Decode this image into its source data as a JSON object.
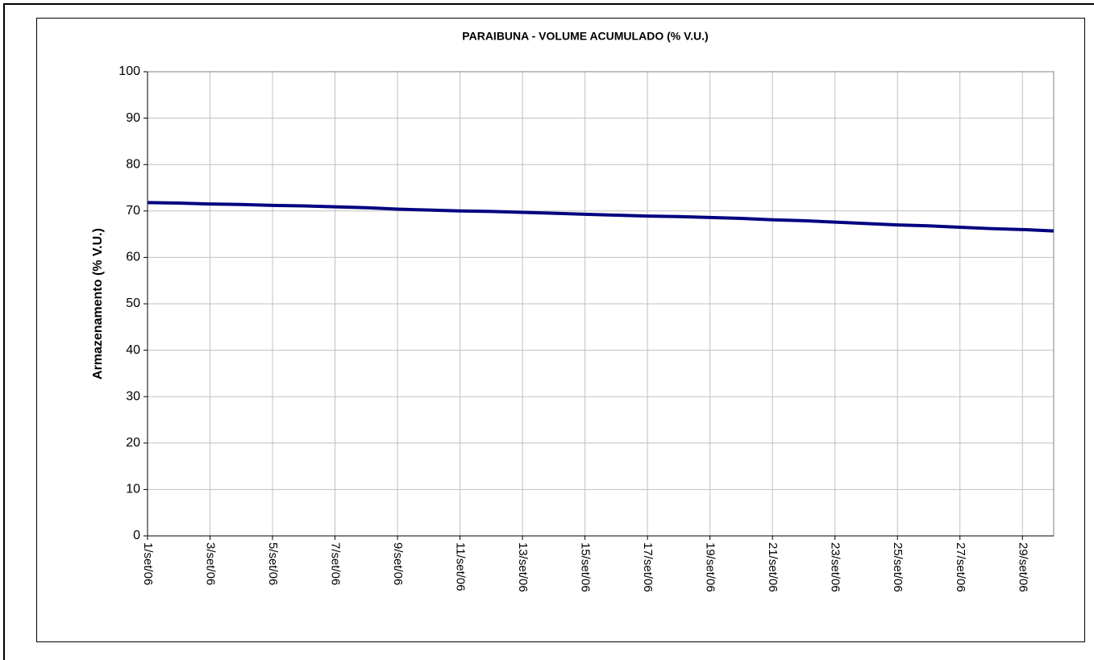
{
  "chart_data": {
    "type": "line",
    "title": "PARAIBUNA - VOLUME ACUMULADO (% V.U.)",
    "y_label": "Armazenamento (% V.U.)",
    "categories": [
      "1/set/06",
      null,
      "3/set/06",
      null,
      "5/set/06",
      null,
      "7/set/06",
      null,
      "9/set/06",
      null,
      "11/set/06",
      null,
      "13/set/06",
      null,
      "15/set/06",
      null,
      "17/set/06",
      null,
      "19/set/06",
      null,
      "21/set/06",
      null,
      "23/set/06",
      null,
      "25/set/06",
      null,
      "27/set/06",
      null,
      "29/set/06",
      null
    ],
    "series": [
      {
        "name": "Armazenamento",
        "color": "#000080",
        "values": [
          71.8,
          71.7,
          71.5,
          71.4,
          71.2,
          71.1,
          70.9,
          70.7,
          70.4,
          70.2,
          70.0,
          69.9,
          69.7,
          69.5,
          69.3,
          69.1,
          68.9,
          68.8,
          68.6,
          68.4,
          68.1,
          67.9,
          67.6,
          67.3,
          67.0,
          66.8,
          66.5,
          66.2,
          66.0,
          65.7
        ]
      }
    ],
    "ylim": [
      0,
      100
    ],
    "yticks": [
      0,
      10,
      20,
      30,
      40,
      50,
      60,
      70,
      80,
      90,
      100
    ],
    "grid": true
  }
}
